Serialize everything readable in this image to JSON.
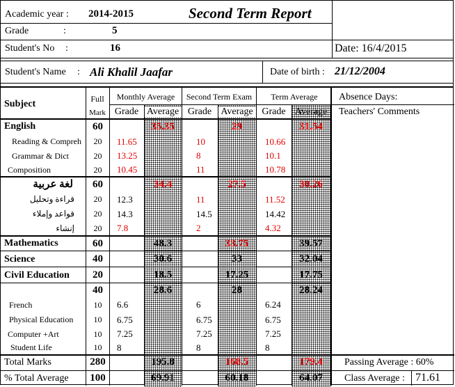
{
  "header": {
    "academic_year_label": "Academic year :",
    "academic_year": "2014-2015",
    "title": "Second Term Report",
    "grade_label": "Grade",
    "grade_colon": ":",
    "grade": "5",
    "student_no_label": "Student's No",
    "student_no_colon": ":",
    "student_no": "16",
    "date": "Date: 16/4/2015",
    "name_label": "Student's Name",
    "name_colon": ":",
    "name": "Ali Khalil Jaafar",
    "dob_label": "Date of birth :",
    "dob": "21/12/2004"
  },
  "columns": {
    "subject": "Subject",
    "full": "Full",
    "mark": "Mark",
    "monthly": "Monthly Average",
    "second_term_exam": "Second Term Exam",
    "term_average": "Term Average",
    "grade": "Grade",
    "average": "Average",
    "absence": "Absence Days:",
    "comments": "Teachers' Comments"
  },
  "rows": [
    {
      "subject": "English",
      "full": "60",
      "m_grade": "",
      "m_avg": "35.35",
      "e_grade": "",
      "e_avg": "29",
      "t_grade": "",
      "t_avg": "31.54"
    },
    {
      "subject": "Reading  & Compreh",
      "full": "20",
      "m_grade": "11.65",
      "m_avg": "",
      "e_grade": "10",
      "e_avg": "",
      "t_grade": "10.66",
      "t_avg": ""
    },
    {
      "subject": "Grammar & Dict",
      "full": "20",
      "m_grade": "13.25",
      "m_avg": "",
      "e_grade": "8",
      "e_avg": "",
      "t_grade": "10.1",
      "t_avg": ""
    },
    {
      "subject": "Composition",
      "full": "20",
      "m_grade": "10.45",
      "m_avg": "",
      "e_grade": "11",
      "e_avg": "",
      "t_grade": "10.78",
      "t_avg": ""
    },
    {
      "subject": "لغة عربية",
      "full": "60",
      "m_grade": "",
      "m_avg": "34.4",
      "e_grade": "",
      "e_avg": "27.5",
      "t_grade": "",
      "t_avg": "30.26"
    },
    {
      "subject": "قراءة وتحليل",
      "full": "20",
      "m_grade": "12.3",
      "m_avg": "",
      "e_grade": "11",
      "e_avg": "",
      "t_grade": "11.52",
      "t_avg": ""
    },
    {
      "subject": "قواعد وإملاء",
      "full": "20",
      "m_grade": "14.3",
      "m_avg": "",
      "e_grade": "14.5",
      "e_avg": "",
      "t_grade": "14.42",
      "t_avg": ""
    },
    {
      "subject": "إنشاء",
      "full": "20",
      "m_grade": "7.8",
      "m_avg": "",
      "e_grade": "2",
      "e_avg": "",
      "t_grade": "4.32",
      "t_avg": ""
    },
    {
      "subject": "Mathematics",
      "full": "60",
      "m_grade": "",
      "m_avg": "48.3",
      "e_grade": "",
      "e_avg": "33.75",
      "t_grade": "",
      "t_avg": "39.57"
    },
    {
      "subject": "Science",
      "full": "40",
      "m_grade": "",
      "m_avg": "30.6",
      "e_grade": "",
      "e_avg": "33",
      "t_grade": "",
      "t_avg": "32.04"
    },
    {
      "subject": "Civil Education",
      "full": "20",
      "m_grade": "",
      "m_avg": "18.5",
      "e_grade": "",
      "e_avg": "17.25",
      "t_grade": "",
      "t_avg": "17.75"
    },
    {
      "subject": "",
      "full": "40",
      "m_grade": "",
      "m_avg": "28.6",
      "e_grade": "",
      "e_avg": "28",
      "t_grade": "",
      "t_avg": "28.24"
    },
    {
      "subject": "French",
      "full": "10",
      "m_grade": "6.6",
      "m_avg": "",
      "e_grade": "6",
      "e_avg": "",
      "t_grade": "6.24",
      "t_avg": ""
    },
    {
      "subject": "Physical Education",
      "full": "10",
      "m_grade": "6.75",
      "m_avg": "",
      "e_grade": "6.75",
      "e_avg": "",
      "t_grade": "6.75",
      "t_avg": ""
    },
    {
      "subject": "Computer +Art",
      "full": "10",
      "m_grade": "7.25",
      "m_avg": "",
      "e_grade": "7.25",
      "e_avg": "",
      "t_grade": "7.25",
      "t_avg": ""
    },
    {
      "subject": "Student Life",
      "full": "10",
      "m_grade": "8",
      "m_avg": "",
      "e_grade": "8",
      "e_avg": "",
      "t_grade": "8",
      "t_avg": ""
    }
  ],
  "totals": {
    "total_label": "Total Marks",
    "total_full": "280",
    "total_m": "195.8",
    "total_e": "168.5",
    "total_t": "179.4",
    "pct_label": "% Total Average",
    "pct_full": "100",
    "pct_m": "69.91",
    "pct_e": "60.18",
    "pct_t": "64.07",
    "passing": "Passing Average : 60%",
    "class_avg_label": "Class Average :",
    "class_avg": "71.61"
  }
}
